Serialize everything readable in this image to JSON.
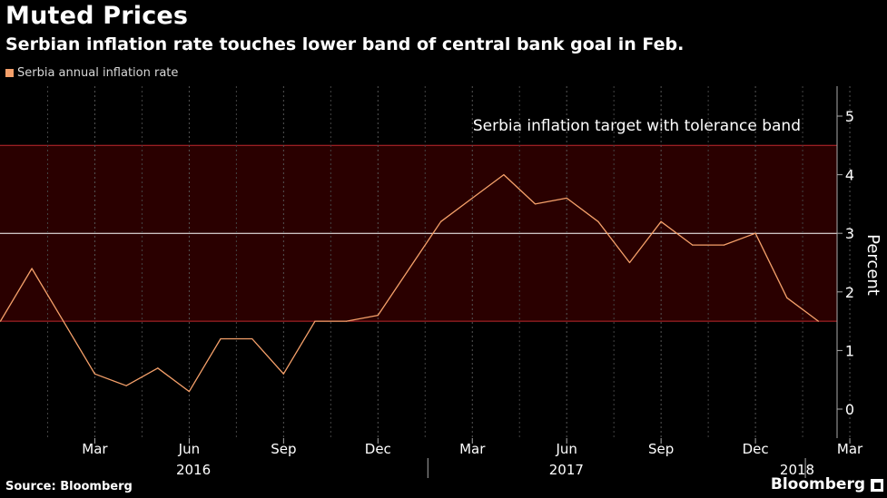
{
  "header": {
    "title": "Muted Prices",
    "subtitle": "Serbian inflation rate touches lower band of central bank goal in Feb."
  },
  "footer": {
    "source": "Source: Bloomberg",
    "brand": "Bloomberg"
  },
  "colors": {
    "background": "#000000",
    "series": "#f5a06a",
    "band_fill": "#2a0000",
    "band_line": "#c0282d",
    "target_line": "#ffffff",
    "grid": "#555555",
    "axis_text": "#ffffff"
  },
  "chart_data": {
    "type": "line",
    "title": "Muted Prices",
    "subtitle": "Serbian inflation rate touches lower band of central bank goal in Feb.",
    "ylabel": "Percent",
    "xlabel": "",
    "ylim": [
      -0.5,
      5.5
    ],
    "yticks": [
      0,
      1,
      2,
      3,
      4,
      5
    ],
    "y_axis_side": "right",
    "grid": "dashed-vertical",
    "legend_placement": "top-left",
    "annotation": "Serbia inflation target with tolerance band",
    "target": {
      "center": 3.0,
      "lower": 1.5,
      "upper": 4.5
    },
    "month_ticks": [
      "Mar",
      "Jun",
      "Sep",
      "Dec",
      "Mar",
      "Jun",
      "Sep",
      "Dec",
      "Mar"
    ],
    "year_labels": [
      "2016",
      "2017",
      "2018"
    ],
    "series": [
      {
        "name": "Serbia annual inflation rate",
        "x": [
          "2015-12",
          "2016-01",
          "2016-02",
          "2016-03",
          "2016-04",
          "2016-05",
          "2016-06",
          "2016-07",
          "2016-08",
          "2016-09",
          "2016-10",
          "2016-11",
          "2016-12",
          "2017-01",
          "2017-02",
          "2017-03",
          "2017-04",
          "2017-05",
          "2017-06",
          "2017-07",
          "2017-08",
          "2017-09",
          "2017-10",
          "2017-11",
          "2017-12",
          "2018-01",
          "2018-02"
        ],
        "values": [
          1.5,
          2.4,
          1.5,
          0.6,
          0.4,
          0.7,
          0.3,
          1.2,
          1.2,
          0.6,
          1.5,
          1.5,
          1.6,
          2.4,
          3.2,
          3.6,
          4.0,
          3.5,
          3.6,
          3.2,
          2.5,
          3.2,
          2.8,
          2.8,
          3.0,
          1.9,
          1.5
        ]
      }
    ]
  }
}
